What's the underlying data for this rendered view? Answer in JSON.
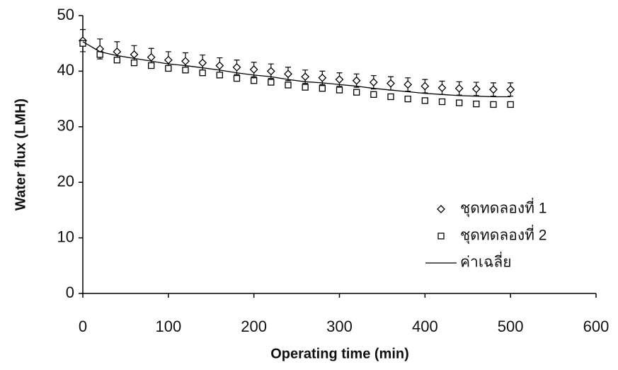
{
  "chart_data": {
    "type": "scatter",
    "xlabel": "Operating time (min)",
    "ylabel": "Water flux (LMH)",
    "xlim": [
      0,
      600
    ],
    "xticks": [
      0,
      100,
      200,
      300,
      400,
      500,
      600
    ],
    "ylim": [
      0,
      50
    ],
    "yticks": [
      0,
      10,
      20,
      30,
      40,
      50
    ],
    "grid": false,
    "legend": "lower right",
    "x": [
      0,
      20,
      40,
      60,
      80,
      100,
      120,
      140,
      160,
      180,
      200,
      220,
      240,
      260,
      280,
      300,
      320,
      340,
      360,
      380,
      400,
      420,
      440,
      460,
      480,
      500
    ],
    "series": [
      {
        "name": "ชุดทดลองที่ 1",
        "marker": "diamond",
        "color": "#000000",
        "values": [
          45.5,
          44,
          43.5,
          43,
          42.5,
          42,
          41.8,
          41.5,
          41,
          40.7,
          40.3,
          40,
          39.5,
          39,
          38.8,
          38.5,
          38.3,
          38,
          37.8,
          37.6,
          37.3,
          37,
          36.9,
          36.8,
          36.7,
          36.7
        ],
        "errors": [
          2,
          1.8,
          1.8,
          1.6,
          1.6,
          1.5,
          1.5,
          1.4,
          1.4,
          1.3,
          1.3,
          1.3,
          1.2,
          1.2,
          1.2,
          1.2,
          1.2,
          1.2,
          1.2,
          1.2,
          1.2,
          1.2,
          1.2,
          1.2,
          1.2,
          1.2
        ]
      },
      {
        "name": "ชุดทดลองที่ 2",
        "marker": "square",
        "color": "#000000",
        "values": [
          45,
          43,
          42,
          41.5,
          41,
          40.5,
          40.2,
          39.7,
          39.3,
          38.7,
          38.3,
          38,
          37.5,
          37.1,
          36.9,
          36.6,
          36.2,
          35.8,
          35.4,
          35,
          34.7,
          34.5,
          34.3,
          34.1,
          34,
          34
        ]
      },
      {
        "name": "ค่าเฉลี่ย",
        "marker": "line",
        "color": "#000000",
        "values": [
          45.3,
          43.5,
          42.8,
          42.3,
          41.8,
          41.3,
          41,
          40.6,
          40.2,
          39.7,
          39.3,
          39,
          38.5,
          38.1,
          37.9,
          37.6,
          37.3,
          36.9,
          36.6,
          36.3,
          36,
          35.8,
          35.6,
          35.5,
          35.4,
          35.4
        ]
      }
    ]
  }
}
